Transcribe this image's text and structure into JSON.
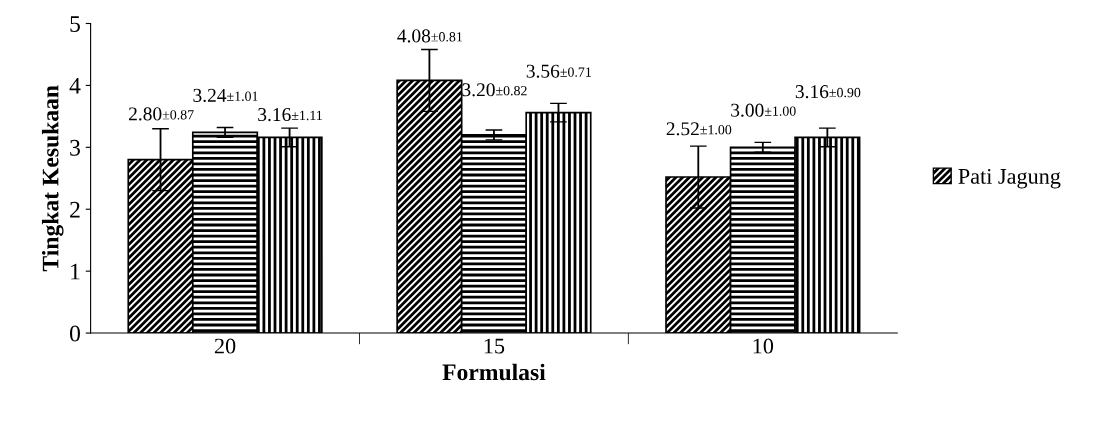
{
  "chart_data": {
    "type": "bar",
    "xlabel": "Formulasi",
    "ylabel": "Tingkat Kesukaan",
    "categories": [
      "20",
      "15",
      "10"
    ],
    "series": [
      {
        "name": "Pati Jagung",
        "color": "#000000",
        "values": [
          2.8,
          4.08,
          2.52
        ],
        "errors": [
          0.5,
          0.5,
          0.5
        ],
        "value_labels": [
          "2.80±0.87",
          "4.08±0.81",
          "2.52±1.00"
        ]
      },
      {
        "color": "#000000",
        "values": [
          3.24,
          3.2,
          3.0
        ],
        "errors": [
          0.08,
          0.08,
          0.08
        ],
        "value_labels": [
          "3.24±1.01",
          "3.20±0.82",
          "3.00±1.00"
        ]
      },
      {
        "color": "#000000",
        "values": [
          3.16,
          3.56,
          3.16
        ],
        "errors": [
          0.15,
          0.15,
          0.15
        ],
        "value_labels": [
          "3.16±1.11",
          "3.56±0.71",
          "3.16±0.90"
        ]
      }
    ],
    "ylim": [
      0,
      5
    ],
    "yticks": [
      0,
      1,
      2,
      3,
      4,
      5
    ],
    "grid": false,
    "legend": "right"
  }
}
